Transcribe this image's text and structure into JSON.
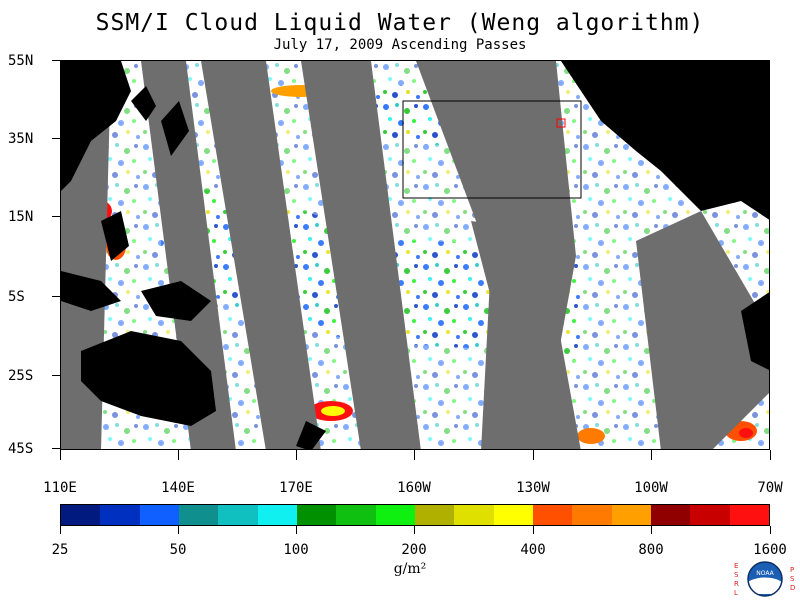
{
  "title": "SSM/I Cloud Liquid Water (Weng algorithm)",
  "subtitle": "July 17, 2009  Ascending Passes",
  "latitude_labels": [
    "55N",
    "35N",
    "15N",
    "5S",
    "25S",
    "45S"
  ],
  "longitude_labels": [
    "110E",
    "140E",
    "170E",
    "160W",
    "130W",
    "100W",
    "70W"
  ],
  "colorbar": {
    "colors": [
      "#001a80",
      "#0030c0",
      "#1060ff",
      "#108f8f",
      "#10c0c0",
      "#10f0f0",
      "#009000",
      "#10c010",
      "#10f010",
      "#b0b000",
      "#e0e000",
      "#ffff00",
      "#ff5000",
      "#ff7a00",
      "#ffa000",
      "#900000",
      "#c80000",
      "#ff1010"
    ],
    "labels": [
      "25",
      "50",
      "100",
      "200",
      "400",
      "800",
      "1600"
    ],
    "units": "g/m²"
  },
  "logo": {
    "left_letters": [
      "E",
      "S",
      "R",
      "L"
    ],
    "right_letters": [
      "P",
      "S",
      "D"
    ],
    "emblem_text": "NOAA"
  }
}
